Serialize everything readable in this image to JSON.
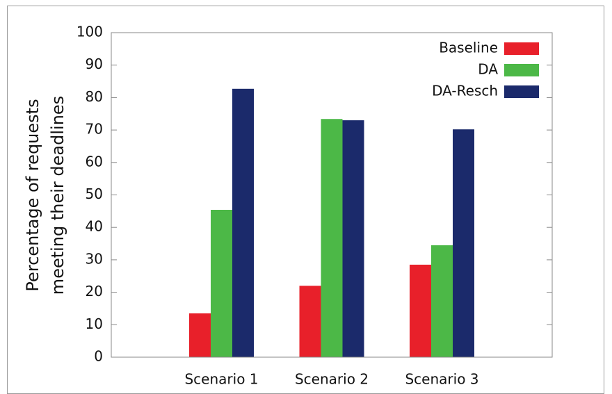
{
  "chart_data": {
    "type": "bar",
    "ylabel": [
      "Percentage of requests",
      "meeting their deadlines"
    ],
    "categories": [
      "Scenario 1",
      "Scenario 2",
      "Scenario 3"
    ],
    "series": [
      {
        "name": "Baseline",
        "color": "#e8202a",
        "values": [
          13.5,
          22,
          28.5
        ]
      },
      {
        "name": "DA",
        "color": "#4cb847",
        "values": [
          45.4,
          73.4,
          34.5
        ]
      },
      {
        "name": "DA-Resch",
        "color": "#1b2a6b",
        "values": [
          82.7,
          73,
          70.2
        ]
      }
    ],
    "ylim": [
      0,
      100
    ],
    "yticks": [
      0,
      10,
      20,
      30,
      40,
      50,
      60,
      70,
      80,
      90,
      100
    ],
    "grid": false,
    "legend": "top-right"
  }
}
